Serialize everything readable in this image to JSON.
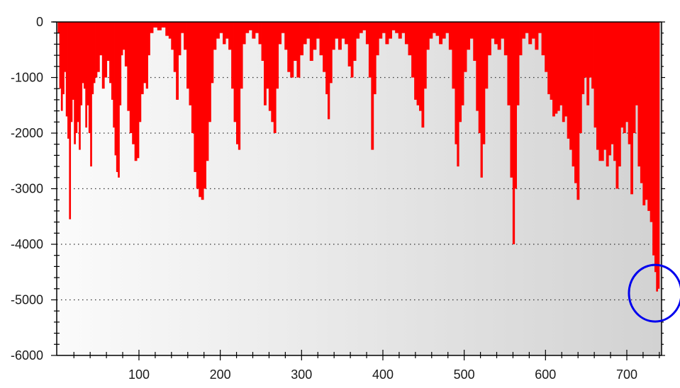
{
  "chart_data": {
    "type": "bar",
    "title": "",
    "xlabel": "",
    "ylabel": "",
    "xlim": [
      0,
      743
    ],
    "ylim": [
      -6000,
      0
    ],
    "grid": "horizontal dotted",
    "x_ticks": [
      100,
      200,
      300,
      400,
      500,
      600,
      700
    ],
    "y_ticks": [
      0,
      -1000,
      -2000,
      -3000,
      -4000,
      -5000,
      -6000
    ],
    "x_tick_labels": [
      "100",
      "200",
      "300",
      "400",
      "500",
      "600",
      "700"
    ],
    "y_tick_labels": [
      "0",
      "-1000",
      "-2000",
      "-3000",
      "-4000",
      "-5000",
      "-6000"
    ],
    "colors": {
      "series": "#ff0000",
      "annotation": "#0000ee",
      "background_left": "#fbfbfb",
      "background_right": "#d2d2d2"
    },
    "annotation": {
      "shape": "circle",
      "x": 734,
      "y": -4880
    },
    "series": [
      {
        "points": [
          [
            1,
            -200
          ],
          [
            3,
            -1200
          ],
          [
            5,
            -1600
          ],
          [
            7,
            -1300
          ],
          [
            9,
            -900
          ],
          [
            11,
            -1700
          ],
          [
            13,
            -2100
          ],
          [
            15,
            -3550
          ],
          [
            17,
            -1800
          ],
          [
            19,
            -1400
          ],
          [
            21,
            -2200
          ],
          [
            23,
            -2000
          ],
          [
            25,
            -1800
          ],
          [
            27,
            -2300
          ],
          [
            29,
            -1500
          ],
          [
            31,
            -1100
          ],
          [
            33,
            -1200
          ],
          [
            35,
            -1900
          ],
          [
            37,
            -1500
          ],
          [
            39,
            -2000
          ],
          [
            41,
            -2600
          ],
          [
            43,
            -1300
          ],
          [
            45,
            -1100
          ],
          [
            47,
            -1000
          ],
          [
            50,
            -900
          ],
          [
            53,
            -600
          ],
          [
            56,
            -1200
          ],
          [
            59,
            -1000
          ],
          [
            62,
            -700
          ],
          [
            65,
            -1100
          ],
          [
            67,
            -1400
          ],
          [
            69,
            -1900
          ],
          [
            71,
            -2400
          ],
          [
            73,
            -2700
          ],
          [
            75,
            -2800
          ],
          [
            77,
            -1500
          ],
          [
            79,
            -600
          ],
          [
            81,
            -500
          ],
          [
            84,
            -800
          ],
          [
            87,
            -1600
          ],
          [
            90,
            -2000
          ],
          [
            93,
            -2200
          ],
          [
            96,
            -2500
          ],
          [
            99,
            -2450
          ],
          [
            101,
            -1800
          ],
          [
            104,
            -1300
          ],
          [
            107,
            -1100
          ],
          [
            110,
            -1200
          ],
          [
            112,
            -600
          ],
          [
            115,
            -200
          ],
          [
            120,
            -100
          ],
          [
            125,
            -150
          ],
          [
            130,
            -100
          ],
          [
            135,
            -250
          ],
          [
            138,
            -300
          ],
          [
            141,
            -500
          ],
          [
            144,
            -900
          ],
          [
            147,
            -1400
          ],
          [
            150,
            -600
          ],
          [
            153,
            -200
          ],
          [
            157,
            -500
          ],
          [
            160,
            -1200
          ],
          [
            163,
            -1500
          ],
          [
            166,
            -2000
          ],
          [
            169,
            -2700
          ],
          [
            172,
            -3000
          ],
          [
            175,
            -3150
          ],
          [
            178,
            -3200
          ],
          [
            181,
            -3000
          ],
          [
            184,
            -2500
          ],
          [
            187,
            -1800
          ],
          [
            190,
            -1100
          ],
          [
            193,
            -500
          ],
          [
            197,
            -300
          ],
          [
            201,
            -200
          ],
          [
            205,
            -400
          ],
          [
            208,
            -300
          ],
          [
            212,
            -500
          ],
          [
            215,
            -1200
          ],
          [
            218,
            -1800
          ],
          [
            221,
            -2200
          ],
          [
            223,
            -2300
          ],
          [
            226,
            -1200
          ],
          [
            229,
            -400
          ],
          [
            233,
            -200
          ],
          [
            237,
            -150
          ],
          [
            241,
            -300
          ],
          [
            245,
            -200
          ],
          [
            249,
            -400
          ],
          [
            252,
            -700
          ],
          [
            255,
            -1500
          ],
          [
            258,
            -1200
          ],
          [
            261,
            -1600
          ],
          [
            264,
            -1800
          ],
          [
            267,
            -2000
          ],
          [
            270,
            -1200
          ],
          [
            273,
            -400
          ],
          [
            277,
            -200
          ],
          [
            281,
            -500
          ],
          [
            284,
            -900
          ],
          [
            288,
            -1000
          ],
          [
            292,
            -700
          ],
          [
            296,
            -1000
          ],
          [
            300,
            -600
          ],
          [
            304,
            -400
          ],
          [
            308,
            -300
          ],
          [
            312,
            -700
          ],
          [
            316,
            -500
          ],
          [
            320,
            -300
          ],
          [
            324,
            -600
          ],
          [
            328,
            -900
          ],
          [
            331,
            -1300
          ],
          [
            333,
            -1750
          ],
          [
            336,
            -1100
          ],
          [
            339,
            -500
          ],
          [
            343,
            -300
          ],
          [
            347,
            -500
          ],
          [
            351,
            -300
          ],
          [
            355,
            -400
          ],
          [
            359,
            -800
          ],
          [
            362,
            -1000
          ],
          [
            365,
            -700
          ],
          [
            369,
            -300
          ],
          [
            373,
            -200
          ],
          [
            377,
            -150
          ],
          [
            381,
            -400
          ],
          [
            384,
            -1000
          ],
          [
            387,
            -2300
          ],
          [
            390,
            -1300
          ],
          [
            393,
            -600
          ],
          [
            397,
            -300
          ],
          [
            401,
            -200
          ],
          [
            405,
            -400
          ],
          [
            409,
            -300
          ],
          [
            413,
            -150
          ],
          [
            417,
            -200
          ],
          [
            421,
            -300
          ],
          [
            425,
            -200
          ],
          [
            429,
            -400
          ],
          [
            433,
            -600
          ],
          [
            437,
            -1000
          ],
          [
            440,
            -1400
          ],
          [
            443,
            -1500
          ],
          [
            446,
            -1600
          ],
          [
            449,
            -1900
          ],
          [
            452,
            -1200
          ],
          [
            455,
            -500
          ],
          [
            459,
            -300
          ],
          [
            463,
            -200
          ],
          [
            467,
            -250
          ],
          [
            471,
            -400
          ],
          [
            475,
            -300
          ],
          [
            479,
            -200
          ],
          [
            483,
            -500
          ],
          [
            487,
            -1200
          ],
          [
            490,
            -2200
          ],
          [
            492,
            -2600
          ],
          [
            495,
            -1800
          ],
          [
            498,
            -1500
          ],
          [
            501,
            -900
          ],
          [
            505,
            -500
          ],
          [
            509,
            -300
          ],
          [
            513,
            -700
          ],
          [
            516,
            -1600
          ],
          [
            519,
            -2000
          ],
          [
            521,
            -2800
          ],
          [
            524,
            -2200
          ],
          [
            527,
            -1200
          ],
          [
            531,
            -600
          ],
          [
            535,
            -300
          ],
          [
            539,
            -400
          ],
          [
            543,
            -500
          ],
          [
            547,
            -300
          ],
          [
            551,
            -600
          ],
          [
            555,
            -1500
          ],
          [
            558,
            -2800
          ],
          [
            561,
            -4000
          ],
          [
            563,
            -3000
          ],
          [
            566,
            -1500
          ],
          [
            569,
            -600
          ],
          [
            573,
            -300
          ],
          [
            577,
            -200
          ],
          [
            581,
            -400
          ],
          [
            585,
            -300
          ],
          [
            589,
            -500
          ],
          [
            593,
            -200
          ],
          [
            597,
            -600
          ],
          [
            601,
            -900
          ],
          [
            604,
            -1300
          ],
          [
            607,
            -1400
          ],
          [
            610,
            -1700
          ],
          [
            613,
            -1650
          ],
          [
            616,
            -1600
          ],
          [
            619,
            -1500
          ],
          [
            622,
            -1800
          ],
          [
            625,
            -1700
          ],
          [
            628,
            -2100
          ],
          [
            631,
            -2300
          ],
          [
            634,
            -2600
          ],
          [
            637,
            -2900
          ],
          [
            640,
            -3200
          ],
          [
            643,
            -2000
          ],
          [
            646,
            -1300
          ],
          [
            649,
            -1000
          ],
          [
            652,
            -1500
          ],
          [
            655,
            -1000
          ],
          [
            658,
            -1200
          ],
          [
            661,
            -1900
          ],
          [
            664,
            -2300
          ],
          [
            667,
            -2500
          ],
          [
            670,
            -2500
          ],
          [
            673,
            -2300
          ],
          [
            676,
            -2600
          ],
          [
            679,
            -2400
          ],
          [
            682,
            -2200
          ],
          [
            685,
            -2500
          ],
          [
            688,
            -3000
          ],
          [
            691,
            -2600
          ],
          [
            694,
            -1900
          ],
          [
            697,
            -2000
          ],
          [
            700,
            -1800
          ],
          [
            703,
            -2200
          ],
          [
            706,
            -3100
          ],
          [
            709,
            -2000
          ],
          [
            712,
            -1500
          ],
          [
            715,
            -2600
          ],
          [
            718,
            -2900
          ],
          [
            721,
            -3300
          ],
          [
            724,
            -3200
          ],
          [
            727,
            -3400
          ],
          [
            730,
            -3600
          ],
          [
            733,
            -4200
          ],
          [
            735,
            -4500
          ],
          [
            737,
            -4850
          ],
          [
            739,
            -4800
          ]
        ]
      }
    ]
  }
}
